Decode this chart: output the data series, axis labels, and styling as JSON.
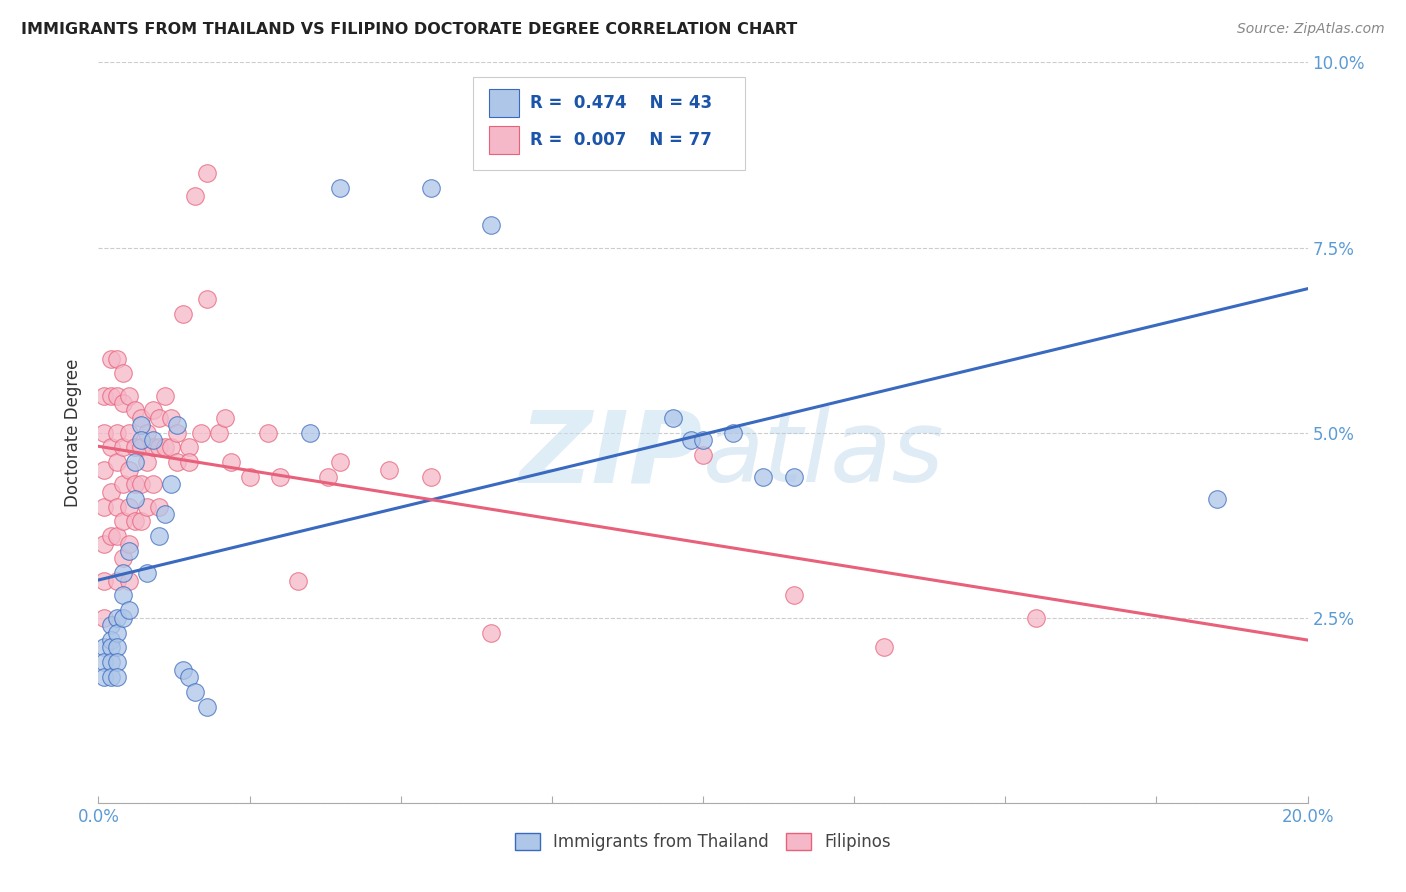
{
  "title": "IMMIGRANTS FROM THAILAND VS FILIPINO DOCTORATE DEGREE CORRELATION CHART",
  "source": "Source: ZipAtlas.com",
  "ylabel": "Doctorate Degree",
  "xlim": [
    0.0,
    0.2
  ],
  "ylim": [
    0.0,
    0.1
  ],
  "legend_r1": "R = 0.474",
  "legend_n1": "N = 43",
  "legend_r2": "R = 0.007",
  "legend_n2": "N = 77",
  "blue_color": "#aec6e8",
  "pink_color": "#f5b8c8",
  "line_blue": "#3a6abf",
  "line_pink": "#e8607a",
  "title_color": "#222222",
  "axis_color": "#5b9bd5",
  "watermark_color": "#cce4f0",
  "background_color": "#ffffff",
  "grid_color": "#cccccc",
  "thailand_x": [
    0.001,
    0.001,
    0.001,
    0.002,
    0.002,
    0.002,
    0.002,
    0.002,
    0.003,
    0.003,
    0.003,
    0.003,
    0.003,
    0.004,
    0.004,
    0.004,
    0.005,
    0.005,
    0.006,
    0.006,
    0.007,
    0.007,
    0.008,
    0.009,
    0.01,
    0.011,
    0.012,
    0.013,
    0.014,
    0.015,
    0.016,
    0.018,
    0.035,
    0.04,
    0.055,
    0.065,
    0.095,
    0.098,
    0.1,
    0.105,
    0.11,
    0.115,
    0.185
  ],
  "thailand_y": [
    0.021,
    0.019,
    0.017,
    0.024,
    0.022,
    0.021,
    0.019,
    0.017,
    0.025,
    0.023,
    0.021,
    0.019,
    0.017,
    0.031,
    0.028,
    0.025,
    0.034,
    0.026,
    0.046,
    0.041,
    0.051,
    0.049,
    0.031,
    0.049,
    0.036,
    0.039,
    0.043,
    0.051,
    0.018,
    0.017,
    0.015,
    0.013,
    0.05,
    0.083,
    0.083,
    0.078,
    0.052,
    0.049,
    0.049,
    0.05,
    0.044,
    0.044,
    0.041
  ],
  "filipino_x": [
    0.001,
    0.001,
    0.001,
    0.001,
    0.001,
    0.001,
    0.001,
    0.002,
    0.002,
    0.002,
    0.002,
    0.002,
    0.003,
    0.003,
    0.003,
    0.003,
    0.003,
    0.003,
    0.003,
    0.004,
    0.004,
    0.004,
    0.004,
    0.004,
    0.004,
    0.005,
    0.005,
    0.005,
    0.005,
    0.005,
    0.005,
    0.006,
    0.006,
    0.006,
    0.006,
    0.007,
    0.007,
    0.007,
    0.007,
    0.008,
    0.008,
    0.008,
    0.009,
    0.009,
    0.009,
    0.01,
    0.01,
    0.01,
    0.011,
    0.011,
    0.012,
    0.012,
    0.013,
    0.013,
    0.014,
    0.015,
    0.015,
    0.016,
    0.017,
    0.018,
    0.018,
    0.02,
    0.021,
    0.022,
    0.025,
    0.028,
    0.03,
    0.033,
    0.038,
    0.04,
    0.048,
    0.055,
    0.065,
    0.1,
    0.115,
    0.13,
    0.155
  ],
  "filipino_y": [
    0.055,
    0.05,
    0.045,
    0.04,
    0.035,
    0.03,
    0.025,
    0.06,
    0.055,
    0.048,
    0.042,
    0.036,
    0.06,
    0.055,
    0.05,
    0.046,
    0.04,
    0.036,
    0.03,
    0.058,
    0.054,
    0.048,
    0.043,
    0.038,
    0.033,
    0.055,
    0.05,
    0.045,
    0.04,
    0.035,
    0.03,
    0.053,
    0.048,
    0.043,
    0.038,
    0.052,
    0.048,
    0.043,
    0.038,
    0.05,
    0.046,
    0.04,
    0.053,
    0.048,
    0.043,
    0.052,
    0.048,
    0.04,
    0.055,
    0.048,
    0.052,
    0.048,
    0.05,
    0.046,
    0.066,
    0.048,
    0.046,
    0.082,
    0.05,
    0.068,
    0.085,
    0.05,
    0.052,
    0.046,
    0.044,
    0.05,
    0.044,
    0.03,
    0.044,
    0.046,
    0.045,
    0.044,
    0.023,
    0.047,
    0.028,
    0.021,
    0.025
  ]
}
